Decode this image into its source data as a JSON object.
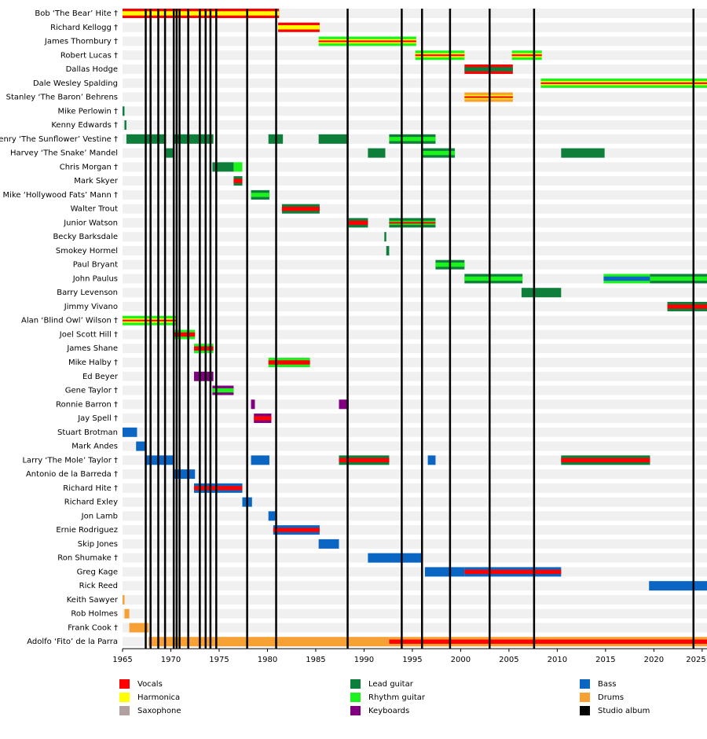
{
  "chart_data": {
    "type": "timeline",
    "xlim": [
      1965,
      2025.5
    ],
    "xticks": [
      1965,
      1970,
      1975,
      1980,
      1985,
      1990,
      1995,
      2000,
      2005,
      2010,
      2015,
      2020,
      2025
    ],
    "roles": [
      {
        "name": "Vocals",
        "color": "#ff0000"
      },
      {
        "name": "Harmonica",
        "color": "#ffff00"
      },
      {
        "name": "Saxophone",
        "color": "#b3a1a1"
      },
      {
        "name": "Lead guitar",
        "color": "#0d7f3a"
      },
      {
        "name": "Rhythm guitar",
        "color": "#1ef21e"
      },
      {
        "name": "Keyboards",
        "color": "#800080"
      },
      {
        "name": "Bass",
        "color": "#0a66c2"
      },
      {
        "name": "Drums",
        "color": "#f7a033"
      }
    ],
    "albums": {
      "name": "Studio album",
      "color": "#000000",
      "years": [
        1967.4,
        1967.9,
        1968.7,
        1969.4,
        1970.3,
        1970.6,
        1970.9,
        1971.8,
        1973.0,
        1973.6,
        1974.1,
        1974.7,
        1977.9,
        1980.9,
        1988.3,
        1993.9,
        1996.0,
        1998.9,
        2003.0,
        2007.6,
        2024.1
      ]
    },
    "members": [
      {
        "name": "Bob ‘The Bear’ Hite †",
        "spans": [
          {
            "start": 1965,
            "end": 1981.2,
            "roles": [
              "Vocals",
              "Harmonica"
            ]
          }
        ]
      },
      {
        "name": "Richard Kellogg †",
        "spans": [
          {
            "start": 1981.1,
            "end": 1985.4,
            "roles": [
              "Vocals",
              "Harmonica"
            ]
          }
        ]
      },
      {
        "name": "James Thornbury †",
        "spans": [
          {
            "start": 1985.3,
            "end": 1995.4,
            "roles": [
              "Rhythm guitar",
              "Harmonica",
              "Vocals"
            ]
          }
        ]
      },
      {
        "name": "Robert Lucas †",
        "spans": [
          {
            "start": 1995.3,
            "end": 2000.4,
            "roles": [
              "Rhythm guitar",
              "Harmonica",
              "Vocals"
            ]
          },
          {
            "start": 2005.3,
            "end": 2008.4,
            "roles": [
              "Rhythm guitar",
              "Harmonica",
              "Vocals"
            ]
          }
        ]
      },
      {
        "name": "Dallas Hodge",
        "spans": [
          {
            "start": 2000.4,
            "end": 2005.4,
            "roles": [
              "Vocals",
              "Lead guitar"
            ]
          }
        ]
      },
      {
        "name": "Dale Wesley Spalding",
        "spans": [
          {
            "start": 2008.3,
            "end": 2025.5,
            "roles": [
              "Rhythm guitar",
              "Harmonica",
              "Vocals"
            ]
          }
        ]
      },
      {
        "name": "Stanley ‘The Baron’ Behrens",
        "spans": [
          {
            "start": 2000.4,
            "end": 2005.4,
            "roles": [
              "Drums",
              "Harmonica",
              "Vocals"
            ]
          }
        ]
      },
      {
        "name": "Mike Perlowin †",
        "spans": [
          {
            "start": 1965,
            "end": 1965.2,
            "roles": [
              "Lead guitar"
            ]
          }
        ]
      },
      {
        "name": "Kenny Edwards †",
        "spans": [
          {
            "start": 1965.2,
            "end": 1965.4,
            "roles": [
              "Lead guitar"
            ]
          }
        ]
      },
      {
        "name": "Henry ‘The Sunflower’ Vestine †",
        "spans": [
          {
            "start": 1965.4,
            "end": 1969.5,
            "roles": [
              "Lead guitar"
            ]
          },
          {
            "start": 1970.2,
            "end": 1974.4,
            "roles": [
              "Lead guitar"
            ]
          },
          {
            "start": 1980.1,
            "end": 1981.6,
            "roles": [
              "Lead guitar"
            ]
          },
          {
            "start": 1985.3,
            "end": 1988.4,
            "roles": [
              "Lead guitar"
            ]
          },
          {
            "start": 1992.6,
            "end": 1997.4,
            "roles": [
              "Lead guitar",
              "Rhythm guitar"
            ]
          }
        ]
      },
      {
        "name": "Harvey ‘The Snake’ Mandel",
        "spans": [
          {
            "start": 1969.5,
            "end": 1970.3,
            "roles": [
              "Lead guitar"
            ]
          },
          {
            "start": 1990.4,
            "end": 1992.2,
            "roles": [
              "Lead guitar"
            ]
          },
          {
            "start": 1996.1,
            "end": 1999.4,
            "roles": [
              "Lead guitar",
              "Rhythm guitar"
            ]
          },
          {
            "start": 2010.4,
            "end": 2014.9,
            "roles": [
              "Lead guitar"
            ]
          }
        ]
      },
      {
        "name": "Chris Morgan †",
        "spans": [
          {
            "start": 1974.3,
            "end": 1976.5,
            "roles": [
              "Lead guitar"
            ]
          },
          {
            "start": 1976.5,
            "end": 1977.4,
            "roles": [
              "Rhythm guitar"
            ]
          }
        ]
      },
      {
        "name": "Mark Skyer",
        "spans": [
          {
            "start": 1976.5,
            "end": 1977.4,
            "roles": [
              "Lead guitar",
              "Vocals"
            ]
          }
        ]
      },
      {
        "name": "Mike ‘Hollywood Fats’ Mann †",
        "spans": [
          {
            "start": 1978.3,
            "end": 1980.2,
            "roles": [
              "Lead guitar",
              "Rhythm guitar"
            ]
          }
        ]
      },
      {
        "name": "Walter Trout",
        "spans": [
          {
            "start": 1981.5,
            "end": 1985.4,
            "roles": [
              "Lead guitar",
              "Vocals"
            ]
          }
        ]
      },
      {
        "name": "Junior Watson",
        "spans": [
          {
            "start": 1988.4,
            "end": 1990.4,
            "roles": [
              "Lead guitar",
              "Vocals"
            ]
          },
          {
            "start": 1992.6,
            "end": 1997.4,
            "roles": [
              "Lead guitar",
              "Rhythm guitar",
              "Vocals"
            ]
          }
        ]
      },
      {
        "name": "Becky Barksdale",
        "spans": [
          {
            "start": 1992.1,
            "end": 1992.3,
            "roles": [
              "Lead guitar"
            ]
          }
        ]
      },
      {
        "name": "Smokey Hormel",
        "spans": [
          {
            "start": 1992.3,
            "end": 1992.6,
            "roles": [
              "Lead guitar"
            ]
          }
        ]
      },
      {
        "name": "Paul Bryant",
        "spans": [
          {
            "start": 1997.4,
            "end": 2000.4,
            "roles": [
              "Lead guitar",
              "Rhythm guitar"
            ]
          }
        ]
      },
      {
        "name": "John Paulus",
        "spans": [
          {
            "start": 2000.4,
            "end": 2006.4,
            "roles": [
              "Lead guitar",
              "Rhythm guitar"
            ]
          },
          {
            "start": 2014.8,
            "end": 2019.6,
            "roles": [
              "Rhythm guitar",
              "Bass"
            ]
          },
          {
            "start": 2019.6,
            "end": 2025.5,
            "roles": [
              "Lead guitar",
              "Rhythm guitar"
            ]
          }
        ]
      },
      {
        "name": "Barry Levenson",
        "spans": [
          {
            "start": 2006.3,
            "end": 2010.4,
            "roles": [
              "Lead guitar"
            ]
          }
        ]
      },
      {
        "name": "Jimmy Vivano",
        "spans": [
          {
            "start": 2021.4,
            "end": 2025.5,
            "roles": [
              "Lead guitar",
              "Vocals"
            ]
          }
        ]
      },
      {
        "name": "Alan ‘Blind Owl’ Wilson †",
        "spans": [
          {
            "start": 1965,
            "end": 1970.5,
            "roles": [
              "Rhythm guitar",
              "Harmonica",
              "Vocals"
            ]
          }
        ]
      },
      {
        "name": "Joel Scott Hill †",
        "spans": [
          {
            "start": 1970.4,
            "end": 1972.5,
            "roles": [
              "Rhythm guitar",
              "Vocals"
            ]
          }
        ]
      },
      {
        "name": "James Shane",
        "spans": [
          {
            "start": 1972.4,
            "end": 1974.4,
            "roles": [
              "Rhythm guitar",
              "Vocals"
            ]
          }
        ]
      },
      {
        "name": "Mike Halby †",
        "spans": [
          {
            "start": 1980.1,
            "end": 1984.4,
            "roles": [
              "Rhythm guitar",
              "Vocals"
            ]
          }
        ]
      },
      {
        "name": "Ed Beyer",
        "spans": [
          {
            "start": 1972.4,
            "end": 1974.4,
            "roles": [
              "Keyboards"
            ]
          }
        ]
      },
      {
        "name": "Gene Taylor †",
        "spans": [
          {
            "start": 1974.3,
            "end": 1976.5,
            "roles": [
              "Keyboards",
              "Rhythm guitar"
            ]
          }
        ]
      },
      {
        "name": "Ronnie Barron †",
        "spans": [
          {
            "start": 1978.3,
            "end": 1978.7,
            "roles": [
              "Keyboards"
            ]
          },
          {
            "start": 1987.4,
            "end": 1988.4,
            "roles": [
              "Keyboards"
            ]
          }
        ]
      },
      {
        "name": "Jay Spell †",
        "spans": [
          {
            "start": 1978.6,
            "end": 1980.4,
            "roles": [
              "Keyboards",
              "Vocals"
            ]
          }
        ]
      },
      {
        "name": "Stuart Brotman",
        "spans": [
          {
            "start": 1965,
            "end": 1966.5,
            "roles": [
              "Bass"
            ]
          }
        ]
      },
      {
        "name": "Mark Andes",
        "spans": [
          {
            "start": 1966.4,
            "end": 1967.4,
            "roles": [
              "Bass"
            ]
          }
        ]
      },
      {
        "name": "Larry ‘The Mole’ Taylor †",
        "spans": [
          {
            "start": 1967.3,
            "end": 1970.3,
            "roles": [
              "Bass"
            ]
          },
          {
            "start": 1978.3,
            "end": 1980.2,
            "roles": [
              "Bass"
            ]
          },
          {
            "start": 1987.4,
            "end": 1992.6,
            "roles": [
              "Lead guitar",
              "Vocals"
            ]
          },
          {
            "start": 1996.6,
            "end": 1997.4,
            "roles": [
              "Bass"
            ]
          },
          {
            "start": 2010.4,
            "end": 2019.6,
            "roles": [
              "Lead guitar",
              "Vocals"
            ]
          }
        ]
      },
      {
        "name": "Antonio de la Barreda †",
        "spans": [
          {
            "start": 1970.2,
            "end": 1972.5,
            "roles": [
              "Bass"
            ]
          }
        ]
      },
      {
        "name": "Richard Hite †",
        "spans": [
          {
            "start": 1972.4,
            "end": 1977.4,
            "roles": [
              "Bass",
              "Vocals"
            ]
          }
        ]
      },
      {
        "name": "Richard Exley",
        "spans": [
          {
            "start": 1977.4,
            "end": 1978.4,
            "roles": [
              "Bass"
            ]
          }
        ]
      },
      {
        "name": "Jon Lamb",
        "spans": [
          {
            "start": 1980.1,
            "end": 1980.8,
            "roles": [
              "Bass"
            ]
          }
        ]
      },
      {
        "name": "Ernie Rodriguez",
        "spans": [
          {
            "start": 1980.6,
            "end": 1985.4,
            "roles": [
              "Bass",
              "Vocals"
            ]
          }
        ]
      },
      {
        "name": "Skip Jones",
        "spans": [
          {
            "start": 1985.3,
            "end": 1987.4,
            "roles": [
              "Bass"
            ]
          }
        ]
      },
      {
        "name": "Ron Shumake †",
        "spans": [
          {
            "start": 1990.4,
            "end": 1996.1,
            "roles": [
              "Bass"
            ]
          }
        ]
      },
      {
        "name": "Greg Kage",
        "spans": [
          {
            "start": 1996.3,
            "end": 2000.4,
            "roles": [
              "Bass"
            ]
          },
          {
            "start": 2000.4,
            "end": 2010.4,
            "roles": [
              "Bass",
              "Vocals"
            ]
          }
        ]
      },
      {
        "name": "Rick Reed",
        "spans": [
          {
            "start": 2019.5,
            "end": 2025.5,
            "roles": [
              "Bass"
            ]
          }
        ]
      },
      {
        "name": "Keith Sawyer",
        "spans": [
          {
            "start": 1965,
            "end": 1965.2,
            "roles": [
              "Drums"
            ]
          }
        ]
      },
      {
        "name": "Rob Holmes",
        "spans": [
          {
            "start": 1965.2,
            "end": 1965.7,
            "roles": [
              "Drums"
            ]
          }
        ]
      },
      {
        "name": "Frank Cook †",
        "spans": [
          {
            "start": 1965.7,
            "end": 1967.7,
            "roles": [
              "Drums"
            ]
          }
        ]
      },
      {
        "name": "Adolfo ‘Fito’ de la Parra",
        "spans": [
          {
            "start": 1967.7,
            "end": 1992.6,
            "roles": [
              "Drums"
            ]
          },
          {
            "start": 1992.6,
            "end": 2025.5,
            "roles": [
              "Drums",
              "Vocals"
            ]
          }
        ]
      }
    ]
  }
}
